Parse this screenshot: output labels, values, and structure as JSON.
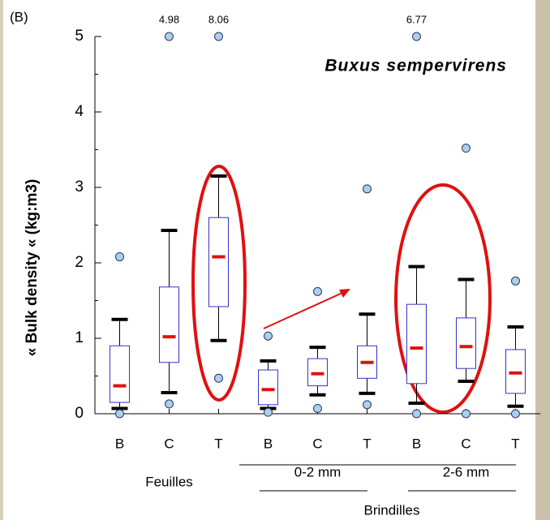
{
  "chart_data": {
    "type": "box",
    "panel_label": "(B)",
    "title": "Buxus sempervirens",
    "ylabel": "« Bulk density « (kg:m3)",
    "categories": [
      "B",
      "C",
      "T",
      "B",
      "C",
      "T",
      "B",
      "C",
      "T"
    ],
    "groups": [
      {
        "label": "Feuilles",
        "size": 3
      },
      {
        "label": "0-2 mm",
        "size": 3
      },
      {
        "label": "2-6 mm",
        "size": 3
      }
    ],
    "supergroup": {
      "label": "Brindilles",
      "first_group": 1
    },
    "ylim": [
      0,
      5
    ],
    "yticks": [
      0,
      1,
      2,
      3,
      4,
      5
    ],
    "minor_step": 0.5,
    "box_color": "#3333cc",
    "median_color": "#e01010",
    "flier_color": "#a8d0f0",
    "boxes": [
      {
        "whislo": 0.07,
        "q1": 0.15,
        "med": 0.37,
        "q3": 0.9,
        "whishi": 1.25,
        "fliers": [
          2.08,
          0.0
        ],
        "fliers_offscale": []
      },
      {
        "whislo": 0.28,
        "q1": 0.68,
        "med": 1.02,
        "q3": 1.68,
        "whishi": 2.43,
        "fliers": [
          0.13
        ],
        "fliers_offscale": [
          4.98
        ]
      },
      {
        "whislo": 0.97,
        "q1": 1.42,
        "med": 2.08,
        "q3": 2.6,
        "whishi": 3.15,
        "fliers": [
          0.47
        ],
        "fliers_offscale": [
          8.06
        ]
      },
      {
        "whislo": 0.07,
        "q1": 0.12,
        "med": 0.32,
        "q3": 0.58,
        "whishi": 0.7,
        "fliers": [
          1.03,
          0.02
        ],
        "fliers_offscale": []
      },
      {
        "whislo": 0.25,
        "q1": 0.37,
        "med": 0.53,
        "q3": 0.73,
        "whishi": 0.88,
        "fliers": [
          1.62,
          0.07
        ],
        "fliers_offscale": []
      },
      {
        "whislo": 0.27,
        "q1": 0.47,
        "med": 0.68,
        "q3": 0.9,
        "whishi": 1.32,
        "fliers": [
          2.98,
          0.12
        ],
        "fliers_offscale": []
      },
      {
        "whislo": 0.14,
        "q1": 0.4,
        "med": 0.87,
        "q3": 1.45,
        "whishi": 1.95,
        "fliers": [
          0.0
        ],
        "fliers_offscale": [
          6.77
        ]
      },
      {
        "whislo": 0.43,
        "q1": 0.6,
        "med": 0.89,
        "q3": 1.27,
        "whishi": 1.78,
        "fliers": [
          3.52,
          0.0
        ],
        "fliers_offscale": []
      },
      {
        "whislo": 0.1,
        "q1": 0.27,
        "med": 0.54,
        "q3": 0.85,
        "whishi": 1.15,
        "fliers": [
          1.76,
          0.0
        ],
        "fliers_offscale": []
      }
    ]
  }
}
